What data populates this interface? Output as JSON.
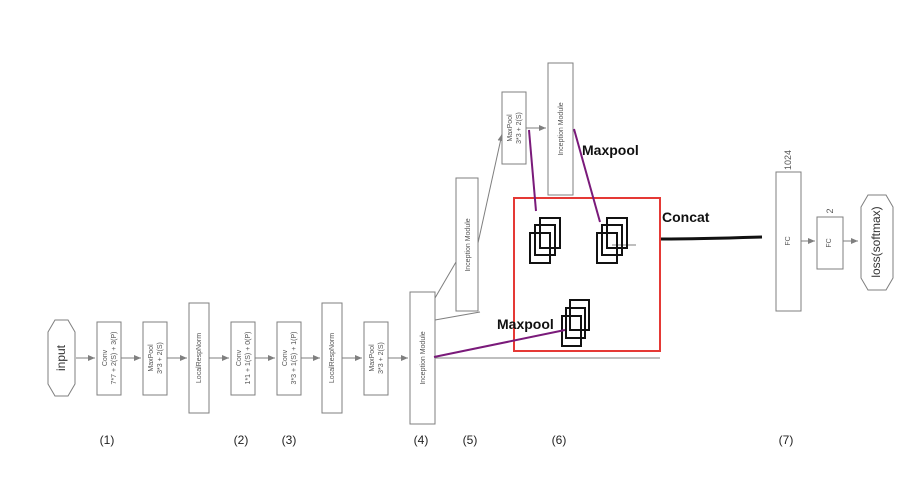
{
  "diagram": {
    "input_label": "input",
    "conv1": [
      "Conv",
      "7*7 + 2(S) + 3(P)"
    ],
    "maxpool1": [
      "MaxPool",
      "3*3 + 2(S)"
    ],
    "localrespnorm1": "LocalRespNorm",
    "conv2": [
      "Conv",
      "1*1 + 1(S) + 0(P)"
    ],
    "conv3": [
      "Conv",
      "3*3 + 1(S) + 1(P)"
    ],
    "localrespnorm2": "LocalRespNorm",
    "maxpool2": [
      "MaxPool",
      "3*3 + 2(S)"
    ],
    "inception_a": "Inception Module",
    "inception_b": "Inception Module",
    "maxpool3": [
      "MaxPool",
      "3*3 + 2(S)"
    ],
    "inception_c": "Inception Module",
    "fc1": "FC",
    "fc1_size": "1024",
    "fc2": "FC",
    "fc2_size": "2",
    "loss_label": "loss(softmax)",
    "annotation_maxpool_top": "Maxpool",
    "annotation_maxpool_bottom": "Maxpool",
    "annotation_concat": "Concat",
    "steps": [
      "(1)",
      "(2)",
      "(3)",
      "(4)",
      "(5)",
      "(6)",
      "(7)"
    ],
    "colors": {
      "box_stroke": "#7f7f7f",
      "highlight_box": "#e53935",
      "annotation_line": "#7a1a7a"
    }
  }
}
